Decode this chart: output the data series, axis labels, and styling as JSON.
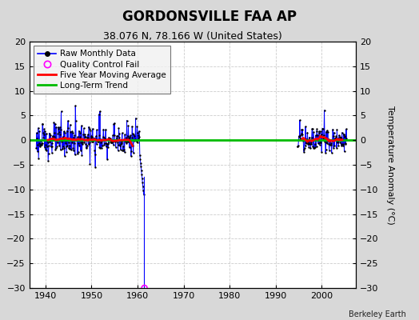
{
  "title": "GORDONSVILLE FAA AP",
  "subtitle": "38.076 N, 78.166 W (United States)",
  "ylabel": "Temperature Anomaly (°C)",
  "attribution": "Berkeley Earth",
  "xlim": [
    1936.5,
    2007.5
  ],
  "ylim": [
    -30,
    20
  ],
  "yticks": [
    -30,
    -25,
    -20,
    -15,
    -10,
    -5,
    0,
    5,
    10,
    15,
    20
  ],
  "xticks": [
    1940,
    1950,
    1960,
    1970,
    1980,
    1990,
    2000
  ],
  "fig_bg_color": "#d8d8d8",
  "plot_bg_color": "#ffffff",
  "raw_data_color": "#0000ff",
  "raw_dot_color": "#000000",
  "qc_fail_color": "#ff00ff",
  "moving_avg_color": "#ff0000",
  "trend_color": "#00bb00",
  "grid_color": "#c0c0c0",
  "segment1_start": 1938.0,
  "segment1_end": 1961.42,
  "segment2_start": 1994.75,
  "segment2_end": 2005.5,
  "qc_fail_x": 1961.5,
  "qc_fail_y": -30.0,
  "outlier_x": 1961.42,
  "outlier_top_y": -7.5,
  "outlier_bot_y": -30.0,
  "long_term_trend_y": 0.1
}
